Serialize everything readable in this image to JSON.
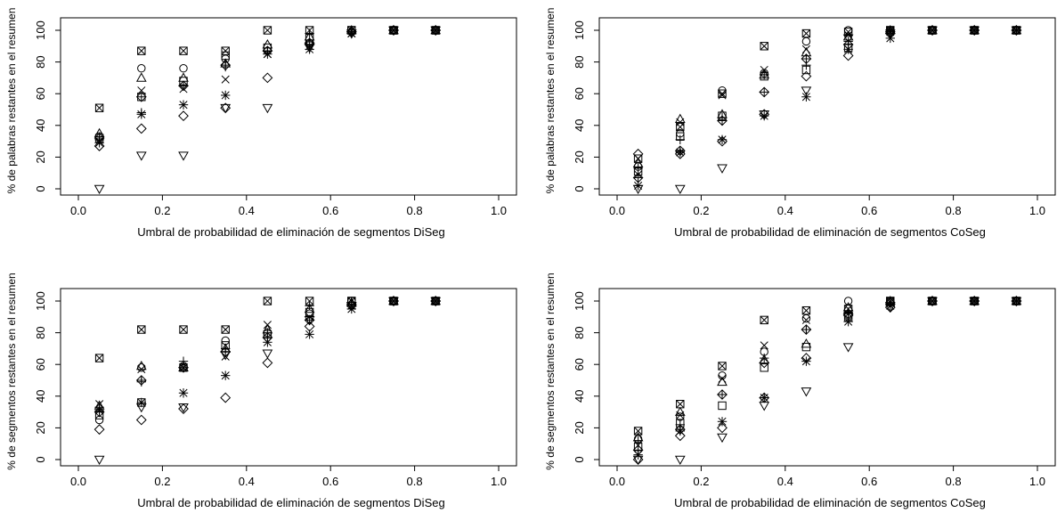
{
  "chart_data": [
    {
      "type": "scatter",
      "title": "",
      "xlabel": "Umbral de probabilidad de eliminación de segmentos DiSeg",
      "ylabel": "% de palabras restantes en el resumen",
      "xlim": [
        0.0,
        1.0
      ],
      "ylim": [
        0,
        100
      ],
      "xticks": [
        "0.0",
        "0.2",
        "0.4",
        "0.6",
        "0.8",
        "1.0"
      ],
      "yticks": [
        "0",
        "20",
        "40",
        "60",
        "80",
        "100"
      ],
      "grid": false,
      "legend": "none",
      "x": [
        0.05,
        0.15,
        0.25,
        0.35,
        0.45,
        0.55,
        0.65,
        0.75,
        0.85
      ],
      "series": [
        {
          "marker": "boxed-x",
          "values": [
            51,
            87,
            87,
            87,
            100,
            100,
            100,
            100,
            100
          ]
        },
        {
          "marker": "circle",
          "values": [
            33,
            76,
            76,
            82,
            87,
            92,
            99,
            100,
            100
          ]
        },
        {
          "marker": "triangle-up",
          "values": [
            35,
            70,
            70,
            79,
            91,
            96,
            100,
            100,
            100
          ]
        },
        {
          "marker": "plus",
          "values": [
            31,
            48,
            65,
            77,
            87,
            98,
            99,
            100,
            100
          ]
        },
        {
          "marker": "x",
          "values": [
            30,
            62,
            63,
            69,
            85,
            90,
            98,
            100,
            100
          ]
        },
        {
          "marker": "diamond-plus",
          "values": [
            32,
            58,
            65,
            78,
            87,
            91,
            99,
            100,
            100
          ]
        },
        {
          "marker": "square",
          "values": [
            32,
            58,
            68,
            84,
            89,
            95,
            100,
            100,
            100
          ]
        },
        {
          "marker": "asterisk",
          "values": [
            29,
            47,
            53,
            59,
            85,
            88,
            98,
            100,
            100
          ]
        },
        {
          "marker": "diamond",
          "values": [
            27,
            38,
            46,
            51,
            70,
            92,
            99,
            100,
            100
          ]
        },
        {
          "marker": "triangle-down",
          "values": [
            0,
            21,
            21,
            51,
            51,
            89,
            98,
            100,
            100
          ]
        }
      ]
    },
    {
      "type": "scatter",
      "title": "",
      "xlabel": "Umbral de probabilidad de eliminación de segmentos CoSeg",
      "ylabel": "% de palabras restantes en el resumen",
      "xlim": [
        0.0,
        1.0
      ],
      "ylim": [
        0,
        100
      ],
      "xticks": [
        "0.0",
        "0.2",
        "0.4",
        "0.6",
        "0.8",
        "1.0"
      ],
      "yticks": [
        "0",
        "20",
        "40",
        "60",
        "80",
        "100"
      ],
      "grid": false,
      "legend": "none",
      "x": [
        0.05,
        0.15,
        0.25,
        0.35,
        0.45,
        0.55,
        0.65,
        0.75,
        0.85,
        0.95
      ],
      "series": [
        {
          "marker": "boxed-x",
          "values": [
            19,
            39,
            60,
            90,
            98,
            99,
            100,
            100,
            100,
            100
          ]
        },
        {
          "marker": "circle",
          "values": [
            14,
            35,
            62,
            73,
            93,
            100,
            100,
            100,
            100,
            100
          ]
        },
        {
          "marker": "triangle-up",
          "values": [
            16,
            44,
            47,
            72,
            86,
            96,
            100,
            100,
            100,
            100
          ]
        },
        {
          "marker": "plus",
          "values": [
            13,
            31,
            45,
            72,
            78,
            93,
            99,
            100,
            100,
            100
          ]
        },
        {
          "marker": "x",
          "values": [
            9,
            42,
            59,
            75,
            88,
            97,
            99,
            100,
            100,
            100
          ]
        },
        {
          "marker": "diamond-plus",
          "values": [
            7,
            24,
            43,
            61,
            82,
            91,
            99,
            100,
            100,
            100
          ]
        },
        {
          "marker": "square",
          "values": [
            11,
            33,
            46,
            71,
            75,
            89,
            100,
            100,
            100,
            100
          ]
        },
        {
          "marker": "asterisk",
          "values": [
            2,
            23,
            31,
            46,
            58,
            88,
            95,
            100,
            100,
            100
          ]
        },
        {
          "marker": "diamond",
          "values": [
            22,
            22,
            30,
            47,
            71,
            84,
            98,
            100,
            100,
            100
          ]
        },
        {
          "marker": "triangle-down",
          "values": [
            0,
            0,
            13,
            47,
            62,
            95,
            98,
            100,
            100,
            100
          ]
        }
      ]
    },
    {
      "type": "scatter",
      "title": "",
      "xlabel": "Umbral de probabilidad de eliminación de segmentos DiSeg",
      "ylabel": "% de segmentos restantes en el resumen",
      "xlim": [
        0.0,
        1.0
      ],
      "ylim": [
        0,
        100
      ],
      "xticks": [
        "0.0",
        "0.2",
        "0.4",
        "0.6",
        "0.8",
        "1.0"
      ],
      "yticks": [
        "0",
        "20",
        "40",
        "60",
        "80",
        "100"
      ],
      "grid": false,
      "legend": "none",
      "x": [
        0.05,
        0.15,
        0.25,
        0.35,
        0.45,
        0.55,
        0.65,
        0.75,
        0.85
      ],
      "series": [
        {
          "marker": "boxed-x",
          "values": [
            64,
            82,
            82,
            82,
            100,
            100,
            100,
            100,
            100
          ]
        },
        {
          "marker": "circle",
          "values": [
            25,
            58,
            59,
            75,
            80,
            92,
            100,
            100,
            100
          ]
        },
        {
          "marker": "triangle-up",
          "values": [
            34,
            59,
            58,
            70,
            82,
            95,
            99,
            100,
            100
          ]
        },
        {
          "marker": "plus",
          "values": [
            33,
            49,
            62,
            70,
            80,
            97,
            99,
            100,
            100
          ]
        },
        {
          "marker": "x",
          "values": [
            35,
            57,
            58,
            65,
            85,
            90,
            97,
            100,
            100
          ]
        },
        {
          "marker": "diamond-plus",
          "values": [
            30,
            50,
            58,
            68,
            77,
            88,
            98,
            100,
            100
          ]
        },
        {
          "marker": "square",
          "values": [
            28,
            36,
            58,
            72,
            79,
            93,
            100,
            100,
            100
          ]
        },
        {
          "marker": "asterisk",
          "values": [
            31,
            36,
            42,
            53,
            74,
            79,
            95,
            100,
            100
          ]
        },
        {
          "marker": "diamond",
          "values": [
            19,
            25,
            32,
            39,
            61,
            84,
            97,
            100,
            100
          ]
        },
        {
          "marker": "triangle-down",
          "values": [
            0,
            33,
            33,
            66,
            67,
            88,
            97,
            100,
            100
          ]
        }
      ]
    },
    {
      "type": "scatter",
      "title": "",
      "xlabel": "Umbral de probabilidad de eliminación de segmentos CoSeg",
      "ylabel": "% de segmentos restantes en el resumen",
      "xlim": [
        0.0,
        1.0
      ],
      "ylim": [
        0,
        100
      ],
      "xticks": [
        "0.0",
        "0.2",
        "0.4",
        "0.6",
        "0.8",
        "1.0"
      ],
      "yticks": [
        "0",
        "20",
        "40",
        "60",
        "80",
        "100"
      ],
      "grid": false,
      "legend": "none",
      "x": [
        0.05,
        0.15,
        0.25,
        0.35,
        0.45,
        0.55,
        0.65,
        0.75,
        0.85,
        0.95
      ],
      "series": [
        {
          "marker": "boxed-x",
          "values": [
            18,
            35,
            59,
            88,
            94,
            95,
            100,
            100,
            100,
            100
          ]
        },
        {
          "marker": "circle",
          "values": [
            13,
            27,
            53,
            68,
            89,
            100,
            100,
            100,
            100,
            100
          ]
        },
        {
          "marker": "triangle-up",
          "values": [
            14,
            30,
            49,
            63,
            73,
            96,
            100,
            100,
            100,
            100
          ]
        },
        {
          "marker": "plus",
          "values": [
            12,
            22,
            41,
            64,
            82,
            93,
            99,
            100,
            100,
            100
          ]
        },
        {
          "marker": "x",
          "values": [
            9,
            28,
            51,
            72,
            88,
            92,
            99,
            100,
            100,
            100
          ]
        },
        {
          "marker": "diamond-plus",
          "values": [
            6,
            19,
            41,
            39,
            82,
            92,
            99,
            100,
            100,
            100
          ]
        },
        {
          "marker": "square",
          "values": [
            8,
            23,
            34,
            58,
            71,
            90,
            100,
            100,
            100,
            100
          ]
        },
        {
          "marker": "asterisk",
          "values": [
            3,
            18,
            24,
            39,
            62,
            87,
            97,
            100,
            100,
            100
          ]
        },
        {
          "marker": "diamond",
          "values": [
            0,
            15,
            20,
            61,
            64,
            91,
            96,
            100,
            100,
            100
          ]
        },
        {
          "marker": "triangle-down",
          "values": [
            0,
            0,
            14,
            34,
            43,
            71,
            96,
            100,
            100,
            100
          ]
        }
      ]
    }
  ]
}
